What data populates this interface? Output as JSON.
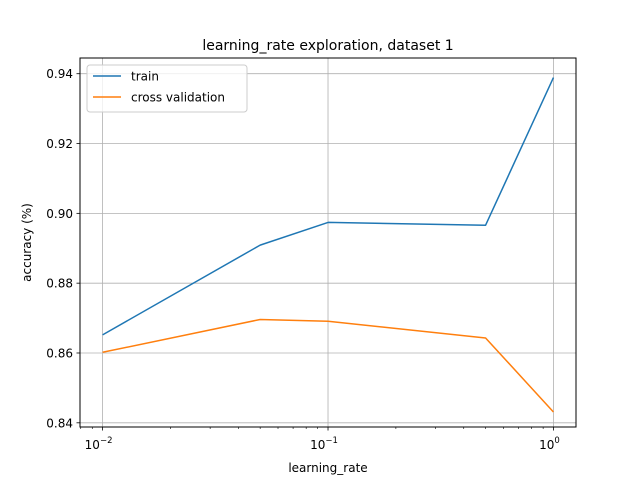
{
  "chart_data": {
    "type": "line",
    "title": "learning_rate exploration, dataset 1",
    "xlabel": "learning_rate",
    "ylabel": "accuracy (%)",
    "x_scale": "log",
    "x": [
      0.01,
      0.05,
      0.1,
      0.5,
      1.0
    ],
    "x_ticks": [
      {
        "value": 0.01,
        "base": "10",
        "exp": "−2"
      },
      {
        "value": 0.1,
        "base": "10",
        "exp": "−1"
      },
      {
        "value": 1.0,
        "base": "10",
        "exp": "0"
      }
    ],
    "y_ticks": [
      "0.84",
      "0.86",
      "0.88",
      "0.90",
      "0.92",
      "0.94"
    ],
    "ylim": [
      0.8388,
      0.9445
    ],
    "xlim": [
      0.00794,
      1.259
    ],
    "grid": true,
    "legend_position": "top-left",
    "series": [
      {
        "name": "train",
        "color": "#1f77b4",
        "values": [
          0.8652,
          0.8909,
          0.8974,
          0.8966,
          0.9389
        ]
      },
      {
        "name": "cross validation",
        "color": "#ff7f0e",
        "values": [
          0.8602,
          0.8696,
          0.8691,
          0.8643,
          0.8431
        ]
      }
    ]
  }
}
